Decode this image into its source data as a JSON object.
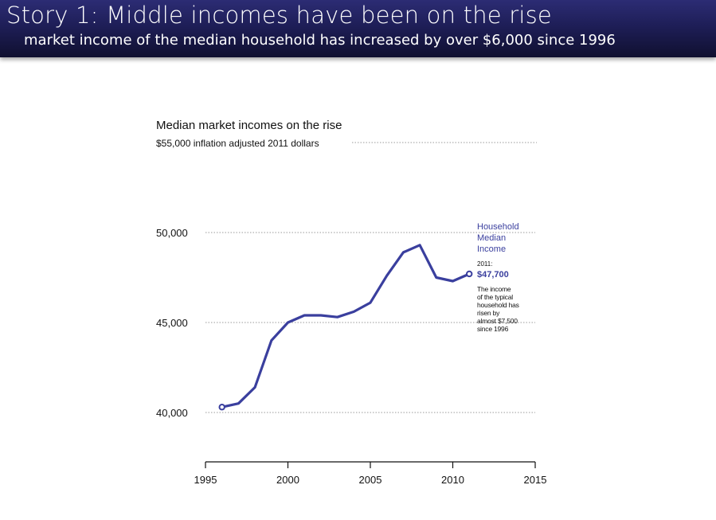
{
  "slide": {
    "title": "Story 1: Middle incomes have been on the rise",
    "subtitle": "market income of the median household has increased by over $6,000 since 1996"
  },
  "chart_data": {
    "type": "line",
    "title": "Median market incomes on the rise",
    "subtitle": "$55,000 inflation adjusted 2011 dollars",
    "xlabel": "",
    "ylabel": "",
    "xlim": [
      1995,
      2015
    ],
    "ylim": [
      37000,
      55000
    ],
    "x_ticks": [
      1995,
      2000,
      2005,
      2010,
      2015
    ],
    "y_ticks": [
      {
        "value": 40000,
        "label": "40,000"
      },
      {
        "value": 45000,
        "label": "45,000"
      },
      {
        "value": 50000,
        "label": "50,000"
      }
    ],
    "grid": true,
    "series": [
      {
        "name": "Household Median Income",
        "color": "#3a3f9e",
        "x": [
          1996,
          1997,
          1998,
          1999,
          2000,
          2001,
          2002,
          2003,
          2004,
          2005,
          2006,
          2007,
          2008,
          2009,
          2010,
          2011
        ],
        "values": [
          40300,
          40500,
          41400,
          44000,
          45000,
          45400,
          45400,
          45300,
          45600,
          46100,
          47600,
          48900,
          49300,
          47500,
          47300,
          47700
        ]
      }
    ],
    "legend_label": [
      "Household",
      "Median",
      "Income"
    ],
    "annotation": {
      "year_label": "2011:",
      "value_label": "$47,700",
      "note": [
        "The income",
        "of the typical",
        "household has",
        "risen by",
        "almost $7,500",
        "since 1996"
      ]
    }
  }
}
